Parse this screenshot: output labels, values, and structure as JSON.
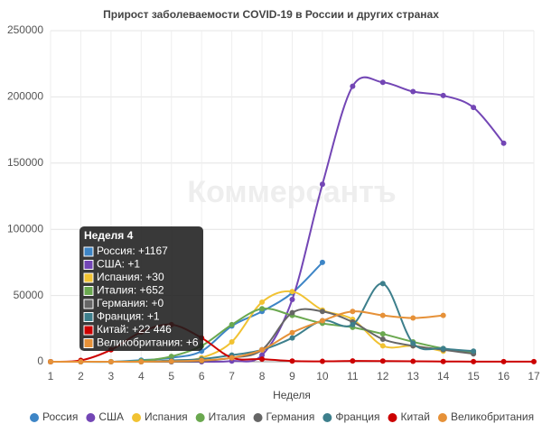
{
  "chart_data": {
    "type": "line",
    "title": "Прирост заболеваемости COVID-19 в России и других странах",
    "watermark": "Коммерсантъ",
    "x_label": "Неделя",
    "x": [
      1,
      2,
      3,
      4,
      5,
      6,
      7,
      8,
      9,
      10,
      11,
      12,
      13,
      14,
      15,
      16,
      17
    ],
    "xlim": [
      1,
      17
    ],
    "xticks": [
      1,
      2,
      3,
      4,
      5,
      6,
      7,
      8,
      9,
      10,
      11,
      12,
      13,
      14,
      15,
      16,
      17
    ],
    "ylim": [
      0,
      250000
    ],
    "yticks": [
      0,
      50000,
      100000,
      150000,
      200000,
      250000
    ],
    "grid": true,
    "legend": "bottom",
    "series": [
      {
        "name": "Россия",
        "color": "#3d85c6",
        "values": [
          0,
          0,
          0,
          1167,
          3000,
          8000,
          27000,
          38000,
          52000,
          75000,
          null,
          null,
          null,
          null,
          null,
          null,
          null
        ]
      },
      {
        "name": "США",
        "color": "#7346b5",
        "values": [
          0,
          0,
          0,
          1,
          0,
          0,
          500,
          5000,
          47000,
          134000,
          208000,
          211000,
          204000,
          201000,
          192000,
          165000,
          null
        ]
      },
      {
        "name": "Испания",
        "color": "#f1c232",
        "values": [
          0,
          0,
          0,
          30,
          500,
          3000,
          15000,
          45000,
          53000,
          39000,
          32000,
          12000,
          12000,
          8000,
          null,
          null,
          null
        ]
      },
      {
        "name": "Италия",
        "color": "#6aa84f",
        "values": [
          0,
          0,
          0,
          652,
          4000,
          12000,
          28000,
          40000,
          35000,
          29000,
          26000,
          21000,
          15000,
          10000,
          7000,
          null,
          null
        ]
      },
      {
        "name": "Германия",
        "color": "#666666",
        "values": [
          0,
          0,
          0,
          0,
          0,
          500,
          3000,
          9000,
          37000,
          38000,
          30000,
          17000,
          12000,
          9000,
          6000,
          null,
          null
        ]
      },
      {
        "name": "Франция",
        "color": "#3d7f8c",
        "values": [
          0,
          0,
          0,
          1,
          1000,
          2000,
          5000,
          9000,
          18000,
          31000,
          28000,
          59000,
          14000,
          10000,
          8000,
          null,
          null
        ]
      },
      {
        "name": "Китай",
        "color": "#cc0000",
        "values": [
          0,
          1000,
          9000,
          22446,
          28000,
          18000,
          3000,
          2000,
          500,
          300,
          600,
          500,
          300,
          200,
          100,
          50,
          50
        ]
      },
      {
        "name": "Великобритания",
        "color": "#e69138",
        "values": [
          0,
          0,
          0,
          6,
          300,
          1000,
          3000,
          9000,
          22000,
          31000,
          38000,
          35000,
          33000,
          35000,
          null,
          null,
          null
        ]
      }
    ],
    "tooltip": {
      "title": "Неделя 4",
      "items": [
        "Россия: +1167",
        "США: +1",
        "Испания: +30",
        "Италия: +652",
        "Германия: +0",
        "Франция: +1",
        "Китай: +22 446",
        "Великобритания: +6"
      ]
    }
  }
}
